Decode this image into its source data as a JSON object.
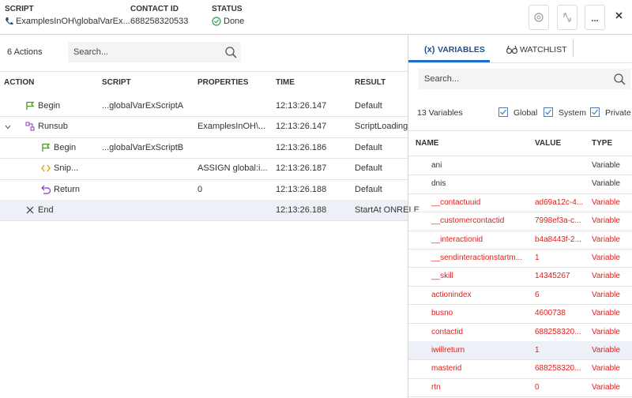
{
  "header": {
    "script_label": "SCRIPT",
    "script_value": "ExamplesInOH\\globalVarEx...",
    "contact_label": "CONTACT ID",
    "contact_value": "688258320533",
    "status_label": "STATUS",
    "status_value": "Done",
    "more_button": "..."
  },
  "actions": {
    "count": "6 Actions",
    "search_placeholder": "Search...",
    "columns": [
      "ACTION",
      "SCRIPT",
      "PROPERTIES",
      "TIME",
      "RESULT"
    ],
    "rows": [
      {
        "action": "Begin",
        "script": "...globalVarExScriptA",
        "time": "12:13:26.147",
        "result": "Default"
      },
      {
        "action": "Runsub",
        "properties": "ExamplesInOH\\...",
        "time": "12:13:26.147",
        "result": "ScriptLoading"
      },
      {
        "action": "Begin",
        "script": "...globalVarExScriptB",
        "time": "12:13:26.186",
        "result": "Default"
      },
      {
        "action": "Snip...",
        "properties": "ASSIGN global:i...",
        "time": "12:13:26.187",
        "result": "Default"
      },
      {
        "action": "Return",
        "properties": "0",
        "time": "12:13:26.188",
        "result": "Default"
      },
      {
        "action": "End",
        "time": "12:13:26.188",
        "result": "StartAt ONRELE"
      }
    ]
  },
  "variables": {
    "tabs": [
      {
        "icon": "(x)",
        "label": "VARIABLES"
      },
      {
        "label": "WATCHLIST"
      }
    ],
    "search_placeholder": "Search...",
    "count": "13 Variables",
    "filters": [
      "Global",
      "System",
      "Private"
    ],
    "columns": [
      "NAME",
      "VALUE",
      "TYPE"
    ],
    "rows": [
      {
        "name": "ani",
        "type": "Variable",
        "color": "#333333"
      },
      {
        "name": "dnis",
        "type": "Variable",
        "color": "#333333"
      },
      {
        "name": "__contactuuid",
        "value": "ad69a12c-4...",
        "type": "Variable",
        "color": "#e0201c"
      },
      {
        "name": "__customercontactid",
        "value": "7998ef3a-c...",
        "type": "Variable",
        "color": "#e0201c"
      },
      {
        "name": "__interactionid",
        "value": "b4a8443f-2...",
        "type": "Variable",
        "color": "#e0201c"
      },
      {
        "name": "__sendinteractionstartm...",
        "value": "1",
        "type": "Variable",
        "color": "#e0201c"
      },
      {
        "name": "__skill",
        "value": "14345267",
        "type": "Variable",
        "color": "#e0201c"
      },
      {
        "name": "actionindex",
        "value": "6",
        "type": "Variable",
        "color": "#e0201c"
      },
      {
        "name": "busno",
        "value": "4600738",
        "type": "Variable",
        "color": "#e0201c"
      },
      {
        "name": "contactid",
        "value": "688258320...",
        "type": "Variable",
        "color": "#e0201c"
      },
      {
        "name": "iwillreturn",
        "value": "1",
        "type": "Variable",
        "color": "#e0201c"
      },
      {
        "name": "masterid",
        "value": "688258320...",
        "type": "Variable",
        "color": "#e0201c"
      },
      {
        "name": "rtn",
        "value": "0",
        "type": "Variable",
        "color": "#e0201c"
      }
    ]
  }
}
